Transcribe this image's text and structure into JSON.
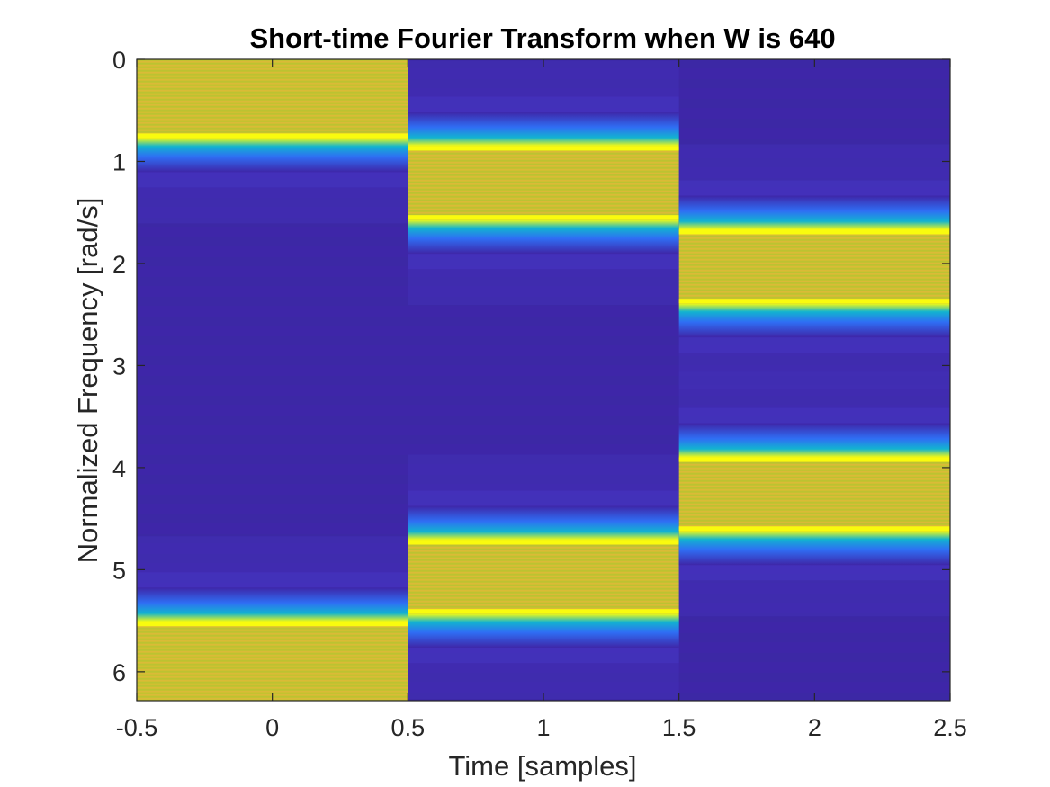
{
  "chart_data": {
    "type": "heatmap",
    "title": "Short-time Fourier Transform when W is 640",
    "xlabel": "Time [samples]",
    "ylabel": "Normalized Frequency [rad/s]",
    "xlim": [
      -0.5,
      2.5
    ],
    "ylim": [
      0,
      6.2832
    ],
    "y_direction": "reversed",
    "colormap": "parula",
    "x_ticks": [
      -0.5,
      0,
      0.5,
      1,
      1.5,
      2,
      2.5
    ],
    "x_tick_labels": [
      "-0.5",
      "0",
      "0.5",
      "1",
      "1.5",
      "2",
      "2.5"
    ],
    "y_ticks": [
      0,
      1,
      2,
      3,
      4,
      5,
      6
    ],
    "y_tick_labels": [
      "0",
      "1",
      "2",
      "3",
      "4",
      "5",
      "6"
    ],
    "columns": [
      {
        "time": 0,
        "high_bands": [
          [
            0,
            0.77
          ],
          [
            5.51,
            6.2832
          ]
        ]
      },
      {
        "time": 1,
        "high_bands": [
          [
            0.85,
            1.57
          ],
          [
            4.71,
            5.43
          ]
        ]
      },
      {
        "time": 2,
        "high_bands": [
          [
            1.67,
            2.39
          ],
          [
            3.9,
            4.62
          ]
        ]
      }
    ],
    "colors": {
      "background_low": "#3e26a8",
      "band_high": "#c8c22e",
      "band_peak": "#f9fb0e",
      "edge_mid": "#12b3d0",
      "edge_low": "#2f6ef4"
    }
  }
}
